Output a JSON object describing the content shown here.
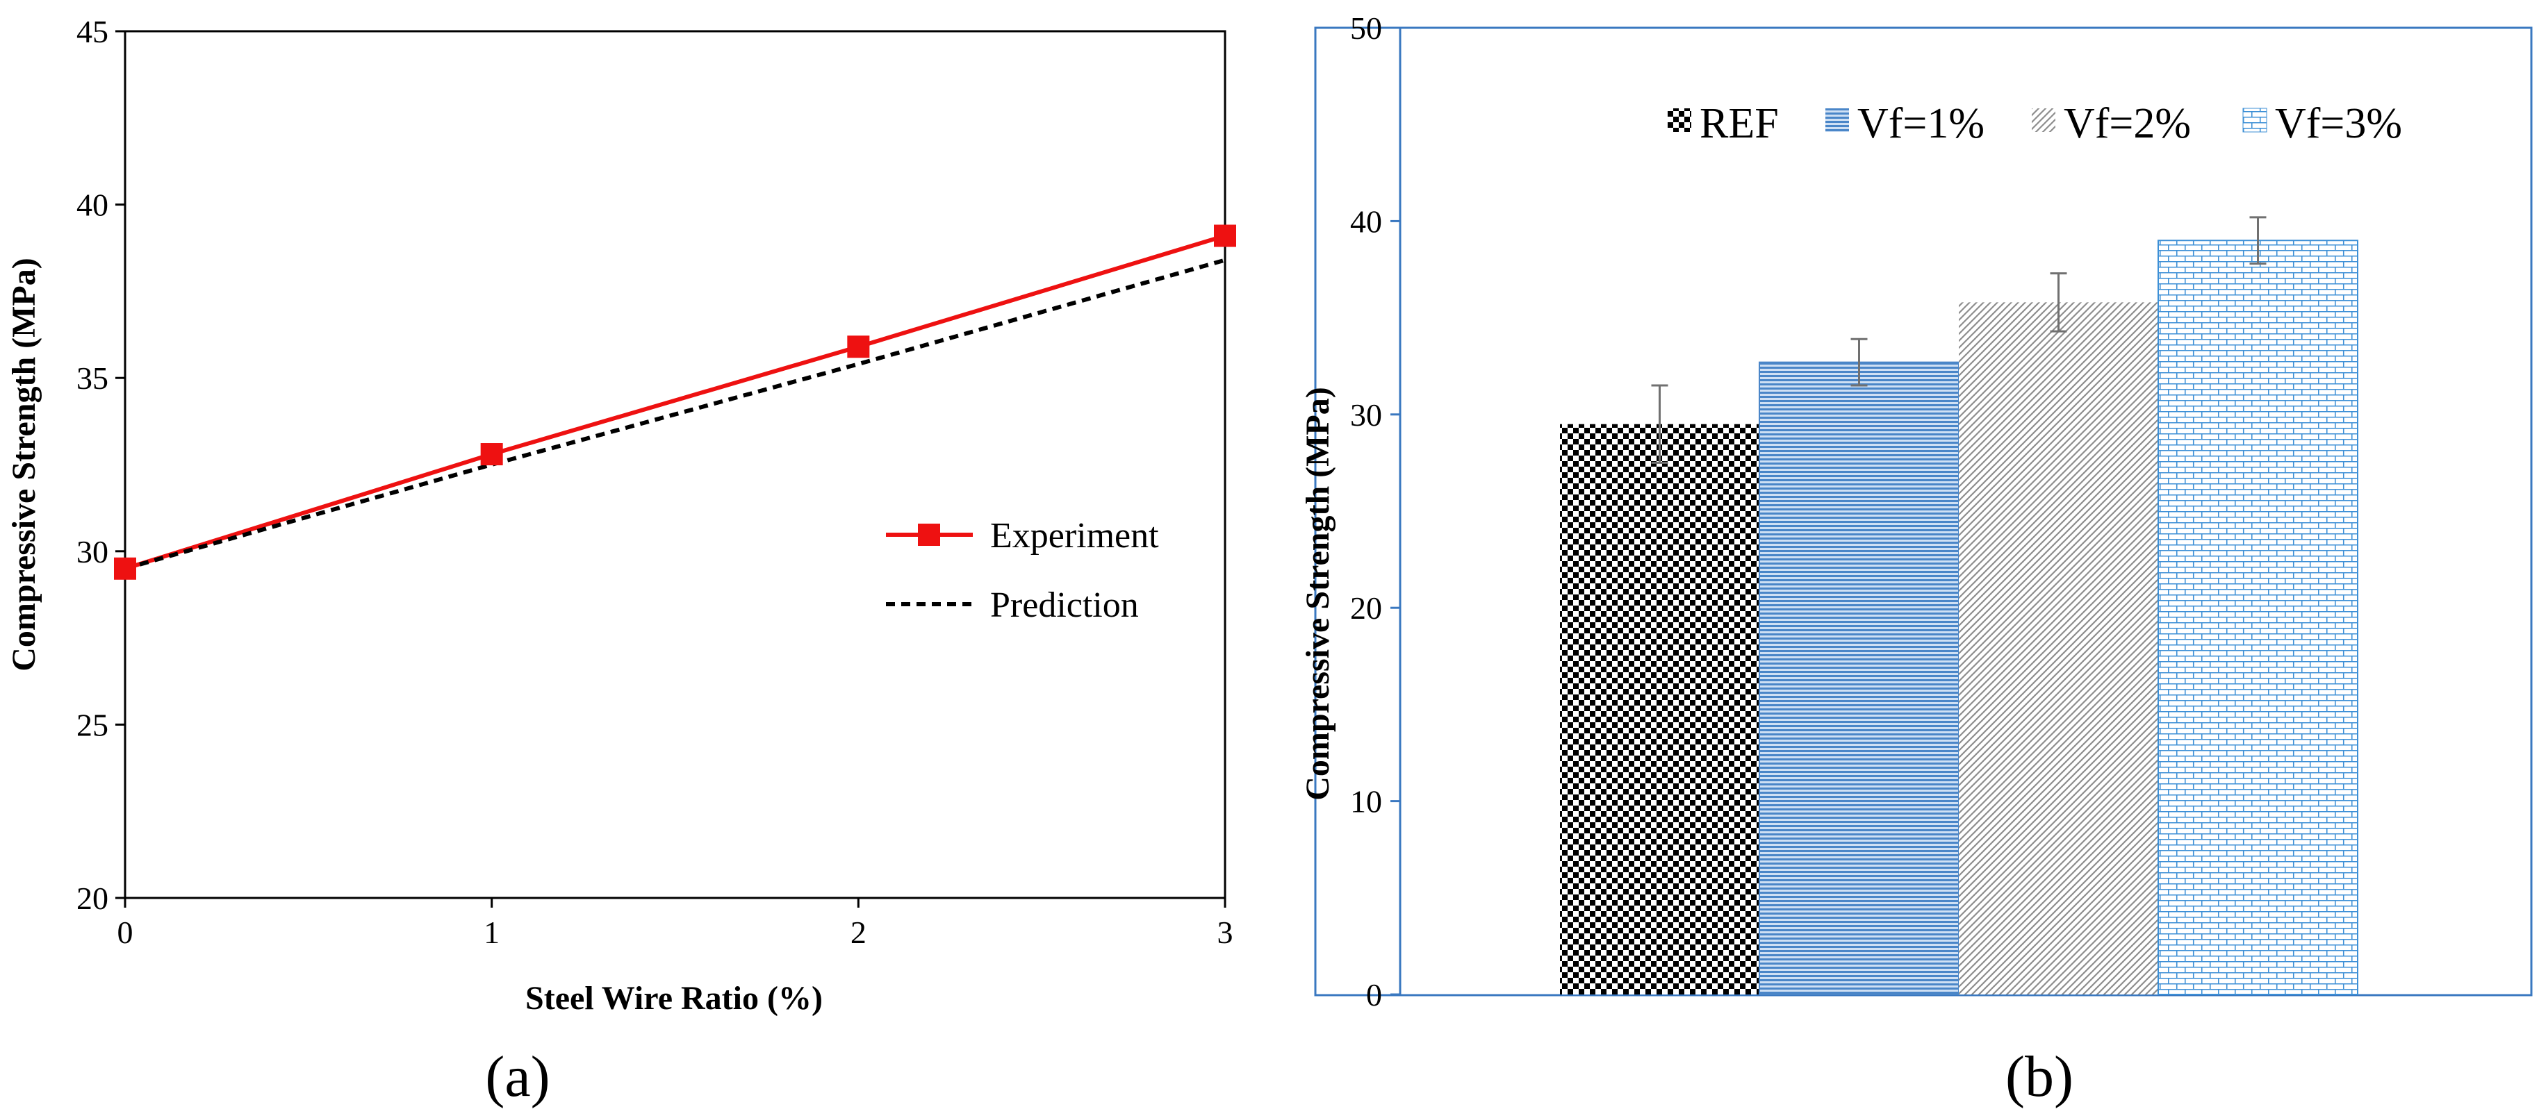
{
  "figure": {
    "caption_a": "(a)",
    "caption_b": "(b)"
  },
  "chart_data": [
    {
      "type": "line",
      "panel": "a",
      "title": "",
      "xlabel": "Steel Wire Ratio (%)",
      "ylabel": "Compressive Strength (MPa)",
      "xlim": [
        0,
        3
      ],
      "ylim": [
        20,
        45
      ],
      "xticks": [
        0,
        1,
        2,
        3
      ],
      "yticks": [
        20,
        25,
        30,
        35,
        40,
        45
      ],
      "x": [
        0,
        1,
        2,
        3
      ],
      "series": [
        {
          "name": "Experiment",
          "values": [
            29.5,
            32.8,
            35.9,
            39.1
          ],
          "color": "#ee1111",
          "style": "solid",
          "marker": "square"
        },
        {
          "name": "Prediction",
          "values": [
            29.5,
            32.5,
            35.4,
            38.4
          ],
          "color": "#000000",
          "style": "dashed",
          "marker": "none"
        }
      ],
      "legend_position": "center-right",
      "grid": false
    },
    {
      "type": "bar",
      "panel": "b",
      "title": "",
      "xlabel": "",
      "ylabel": "Compressive Strength (MPa)",
      "ylim": [
        0,
        50
      ],
      "yticks": [
        0,
        10,
        20,
        30,
        40,
        50
      ],
      "categories": [
        "REF",
        "Vf=1%",
        "Vf=2%",
        "Vf=3%"
      ],
      "values": [
        29.5,
        32.7,
        35.8,
        39.0
      ],
      "error": [
        2.0,
        1.2,
        1.5,
        1.2
      ],
      "patterns": [
        "checker",
        "horizontal-lines",
        "diagonal-lines",
        "brick"
      ],
      "colors": [
        "#000000",
        "#4a86c8",
        "#9a9a9a",
        "#3c8fd6"
      ],
      "legend_position": "top",
      "grid": false
    }
  ]
}
